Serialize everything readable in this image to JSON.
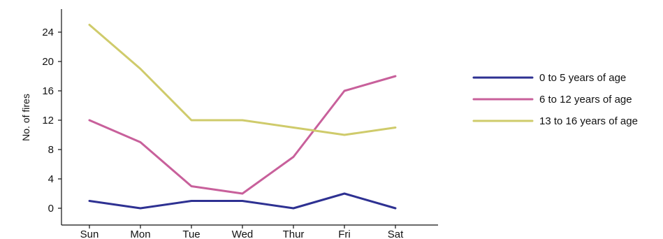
{
  "chart_data": {
    "type": "line",
    "title": "",
    "xlabel": "",
    "ylabel": "No. of fires",
    "categories": [
      "Sun",
      "Mon",
      "Tue",
      "Wed",
      "Thur",
      "Fri",
      "Sat"
    ],
    "ylim": [
      0,
      26
    ],
    "yticks": [
      0,
      4,
      8,
      12,
      16,
      20,
      24
    ],
    "grid": false,
    "legend_position": "right",
    "series": [
      {
        "name": "0 to 5 years of age",
        "color": "#2e3192",
        "values": [
          1,
          0,
          1,
          1,
          0,
          2,
          0
        ]
      },
      {
        "name": "6 to 12 years of age",
        "color": "#c8609b",
        "values": [
          12,
          9,
          3,
          2,
          7,
          16,
          18
        ]
      },
      {
        "name": "13 to 16 years of age",
        "color": "#cfcb6b",
        "values": [
          25,
          19,
          12,
          12,
          11,
          10,
          11
        ]
      }
    ]
  }
}
